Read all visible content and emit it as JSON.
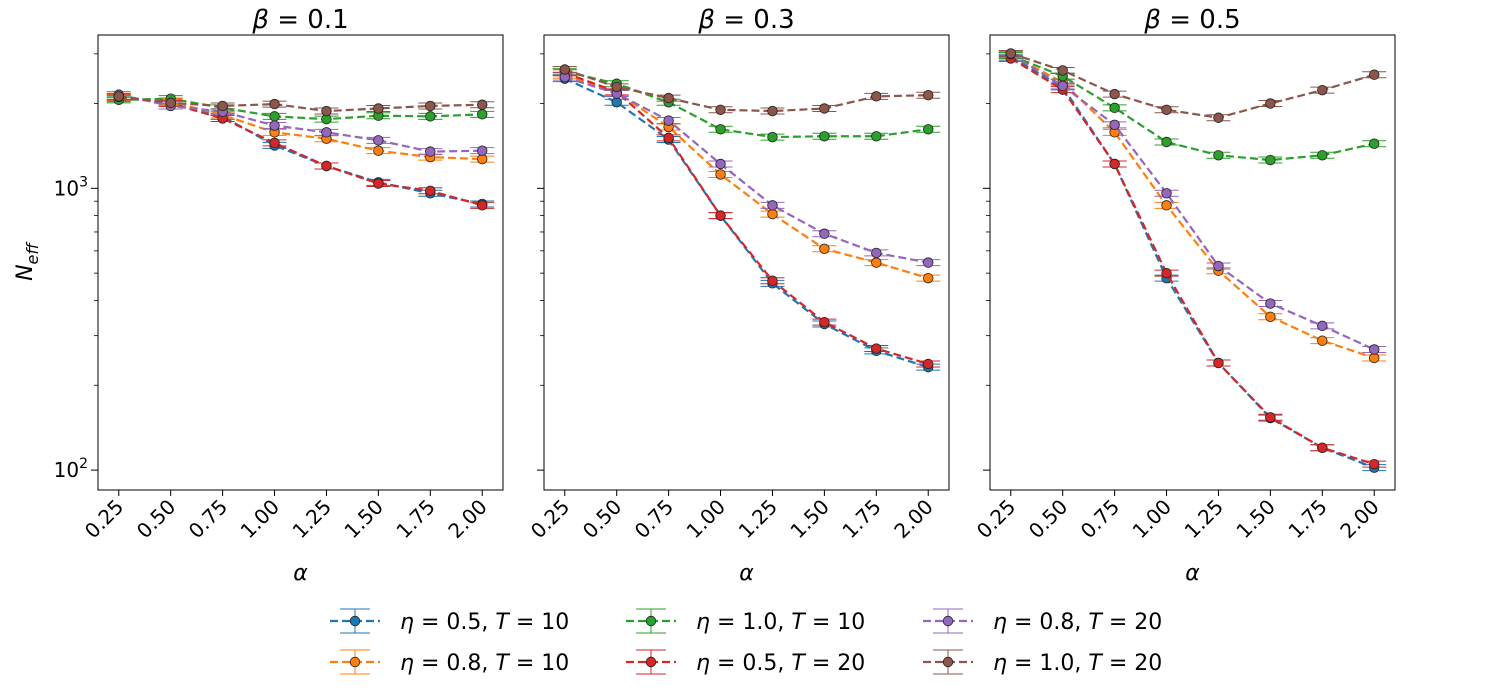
{
  "chart_data": {
    "type": "line",
    "yscale": "log",
    "ylim": [
      85,
      3500
    ],
    "ylabel_base": "N",
    "ylabel_sub": "eff",
    "y_ticks": [
      {
        "value": 100,
        "base": "10",
        "exp": "2"
      },
      {
        "value": 1000,
        "base": "10",
        "exp": "3"
      }
    ],
    "xlabel": "α",
    "x_ticks": [
      "0.25",
      "0.50",
      "0.75",
      "1.00",
      "1.25",
      "1.50",
      "1.75",
      "2.00"
    ],
    "x": [
      0.25,
      0.5,
      0.75,
      1.0,
      1.25,
      1.5,
      1.75,
      2.0
    ],
    "series_styles": [
      {
        "name": "η = 0.5, T = 10",
        "eta": "0.5",
        "T": "10",
        "color": "#1f77b4"
      },
      {
        "name": "η = 0.8, T = 10",
        "eta": "0.8",
        "T": "10",
        "color": "#ff7f0e"
      },
      {
        "name": "η = 1.0, T = 10",
        "eta": "1.0",
        "T": "10",
        "color": "#2ca02c"
      },
      {
        "name": "η = 0.5, T = 20",
        "eta": "0.5",
        "T": "20",
        "color": "#d62728"
      },
      {
        "name": "η = 0.8, T = 20",
        "eta": "0.8",
        "T": "20",
        "color": "#9467bd"
      },
      {
        "name": "η = 1.0, T = 20",
        "eta": "1.0",
        "T": "20",
        "color": "#8c564b"
      }
    ],
    "panels": [
      {
        "title_symbol": "β",
        "title_value": "0.1",
        "series": [
          [
            2080,
            2040,
            1800,
            1420,
            1200,
            1050,
            960,
            880
          ],
          [
            2100,
            2030,
            1820,
            1580,
            1500,
            1360,
            1290,
            1270
          ],
          [
            2060,
            2080,
            1930,
            1800,
            1760,
            1810,
            1800,
            1830
          ],
          [
            2110,
            2000,
            1770,
            1450,
            1200,
            1040,
            980,
            870
          ],
          [
            2150,
            1960,
            1870,
            1670,
            1580,
            1480,
            1350,
            1360
          ],
          [
            2120,
            2010,
            1960,
            1990,
            1880,
            1920,
            1960,
            1980
          ]
        ]
      },
      {
        "title_symbol": "β",
        "title_value": "0.3",
        "series": [
          [
            2450,
            2020,
            1490,
            800,
            460,
            330,
            265,
            232
          ],
          [
            2520,
            2190,
            1650,
            1120,
            810,
            610,
            545,
            480
          ],
          [
            2600,
            2350,
            2020,
            1620,
            1520,
            1530,
            1530,
            1620
          ],
          [
            2570,
            2200,
            1510,
            800,
            470,
            335,
            270,
            238
          ],
          [
            2480,
            2170,
            1740,
            1220,
            870,
            690,
            590,
            545
          ],
          [
            2640,
            2290,
            2090,
            1900,
            1880,
            1920,
            2120,
            2140
          ]
        ]
      },
      {
        "title_symbol": "β",
        "title_value": "0.5",
        "series": [
          [
            2920,
            2290,
            1220,
            480,
            240,
            153,
            120,
            102
          ],
          [
            2970,
            2380,
            1580,
            870,
            510,
            350,
            288,
            250
          ],
          [
            2960,
            2500,
            1930,
            1460,
            1310,
            1260,
            1310,
            1440
          ],
          [
            2890,
            2240,
            1220,
            500,
            240,
            154,
            120,
            105
          ],
          [
            2990,
            2310,
            1680,
            960,
            530,
            390,
            325,
            268
          ],
          [
            3010,
            2620,
            2160,
            1900,
            1780,
            2000,
            2230,
            2530
          ]
        ]
      }
    ],
    "legend_location": "bottom-center"
  }
}
